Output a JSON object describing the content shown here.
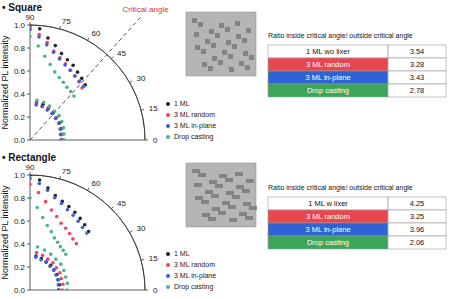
{
  "chart_data": [
    {
      "type": "scatter",
      "title": "• Square",
      "y_label": "Normalized PL intensity",
      "marker": "circle",
      "grid": false,
      "xlim": [
        0,
        90
      ],
      "xticks": [
        0,
        15,
        30,
        45,
        60,
        75,
        90
      ],
      "ylim": [
        0,
        1
      ],
      "yticks": [
        {
          "value": 0,
          "label": "0.0"
        },
        0.2,
        0.4,
        0.6,
        0.8,
        {
          "value": 1,
          "label": "1.0"
        }
      ],
      "annotations": [
        {
          "text": "Critical angle",
          "x": 48,
          "color": "#e03030",
          "line_style": "dashed"
        }
      ],
      "x": [
        90,
        85,
        80,
        75,
        70,
        65,
        60,
        55,
        50,
        45,
        80,
        70,
        60,
        50,
        40,
        30,
        20,
        10,
        0
      ],
      "series": [
        {
          "name": "1 ML",
          "color": "#222222",
          "values": [
            1.0,
            0.97,
            0.9,
            0.85,
            0.8,
            0.77,
            0.75,
            0.72,
            0.7,
            0.68,
            0.33,
            0.33,
            0.32,
            0.31,
            0.3,
            0.3,
            0.29,
            0.28,
            0.28
          ]
        },
        {
          "name": "3 ML random",
          "color": "#e84a5f",
          "values": [
            0.98,
            0.92,
            0.86,
            0.8,
            0.76,
            0.73,
            0.7,
            0.68,
            0.66,
            0.64,
            0.32,
            0.31,
            0.31,
            0.3,
            0.3,
            0.29,
            0.28,
            0.28,
            0.27
          ]
        },
        {
          "name": "3 ML in-plane",
          "color": "#3a5fd9",
          "values": [
            0.96,
            0.9,
            0.84,
            0.79,
            0.75,
            0.72,
            0.7,
            0.68,
            0.67,
            0.66,
            0.31,
            0.31,
            0.3,
            0.3,
            0.29,
            0.29,
            0.28,
            0.27,
            0.27
          ]
        },
        {
          "name": "Drop casting",
          "color": "#4cb38a",
          "values": [
            0.9,
            0.82,
            0.74,
            0.68,
            0.63,
            0.6,
            0.58,
            0.56,
            0.55,
            0.54,
            0.35,
            0.35,
            0.34,
            0.33,
            0.33,
            0.32,
            0.31,
            0.3,
            0.3
          ]
        }
      ],
      "table": {
        "title": "Ratio inside critical angle/ outside critical angle",
        "rows": [
          {
            "label": "1 ML wo lixer",
            "value": 3.54,
            "color": "#ffffff"
          },
          {
            "label": "3 ML random",
            "value": 3.28,
            "color": "#e8474f"
          },
          {
            "label": "3 ML in-plane",
            "value": 3.43,
            "color": "#2e64d1"
          },
          {
            "label": "Drop casting",
            "value": 2.78,
            "color": "#3aa65a"
          }
        ]
      }
    },
    {
      "type": "scatter",
      "title": "• Rectangle",
      "y_label": "Normalized PL intensity",
      "marker": "circle",
      "grid": false,
      "xlim": [
        0,
        90
      ],
      "xticks": [
        0,
        15,
        30,
        45,
        60,
        75,
        90
      ],
      "ylim": [
        0,
        1
      ],
      "yticks": [
        {
          "value": 0,
          "label": "0.0"
        },
        0.2,
        0.4,
        0.6,
        0.8,
        {
          "value": 1,
          "label": "1.0"
        }
      ],
      "annotations": [],
      "x": [
        90,
        85,
        80,
        75,
        70,
        65,
        60,
        55,
        50,
        45,
        80,
        70,
        60,
        50,
        40,
        30,
        20,
        10,
        0
      ],
      "series": [
        {
          "name": "1 ML",
          "color": "#222222",
          "values": [
            1.0,
            0.96,
            0.9,
            0.85,
            0.82,
            0.8,
            0.78,
            0.76,
            0.74,
            0.72,
            0.3,
            0.29,
            0.28,
            0.28,
            0.27,
            0.27,
            0.26,
            0.26,
            0.25
          ]
        },
        {
          "name": "3 ML random",
          "color": "#e84a5f",
          "values": [
            0.92,
            0.85,
            0.78,
            0.72,
            0.68,
            0.64,
            0.62,
            0.6,
            0.58,
            0.57,
            0.33,
            0.32,
            0.31,
            0.31,
            0.3,
            0.3,
            0.29,
            0.29,
            0.28
          ]
        },
        {
          "name": "3 ML in-plane",
          "color": "#3a5fd9",
          "values": [
            0.97,
            0.93,
            0.88,
            0.83,
            0.8,
            0.77,
            0.75,
            0.73,
            0.71,
            0.7,
            0.29,
            0.28,
            0.28,
            0.27,
            0.27,
            0.26,
            0.26,
            0.25,
            0.25
          ]
        },
        {
          "name": "Drop casting",
          "color": "#4cb38a",
          "values": [
            0.8,
            0.72,
            0.64,
            0.58,
            0.54,
            0.5,
            0.48,
            0.46,
            0.45,
            0.44,
            0.38,
            0.37,
            0.36,
            0.35,
            0.35,
            0.34,
            0.33,
            0.33,
            0.32
          ]
        }
      ],
      "table": {
        "title": "Ratio inside critical angle/ outside critical angle",
        "rows": [
          {
            "label": "1 ML w lixer",
            "value": 4.25,
            "color": "#ffffff"
          },
          {
            "label": "3 ML random",
            "value": 3.25,
            "color": "#e8474f"
          },
          {
            "label": "3 ML in-plane",
            "value": 3.96,
            "color": "#2e64d1"
          },
          {
            "label": "Drop casting",
            "value": 2.06,
            "color": "#3aa65a"
          }
        ]
      }
    }
  ]
}
